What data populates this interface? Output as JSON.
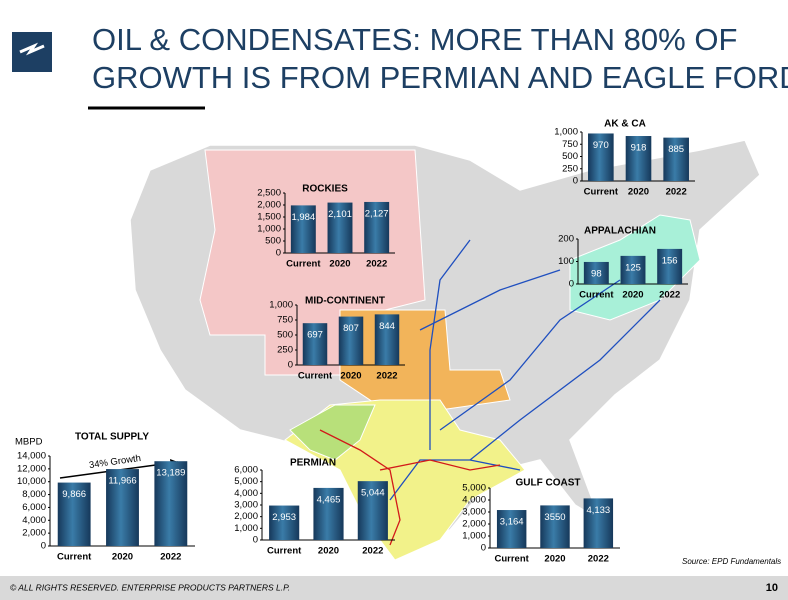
{
  "slide": {
    "title": [
      "OIL & CONDENSATES: MORE THAN 80% OF",
      "GROWTH IS FROM PERMIAN AND EAGLE FORD"
    ],
    "source": "Source:  EPD Fundamentals",
    "footer": "© ALL RIGHTS RESERVED. ENTERPRISE PRODUCTS PARTNERS L.P.",
    "page": 10
  },
  "chart_data": [
    {
      "type": "bar",
      "title": "ROCKIES",
      "categories": [
        "Current",
        "2020",
        "2022"
      ],
      "values": [
        1984,
        2101,
        2127
      ],
      "value_labels": [
        "1,984",
        "2,101",
        "2,127"
      ],
      "color": "url(#barg)",
      "ylim": [
        0,
        2500
      ],
      "yticks": [
        0,
        500,
        {
          "value": 1000,
          "label": "1,000"
        },
        {
          "value": 1500,
          "label": "1,500"
        },
        {
          "value": 2000,
          "label": "2,000"
        },
        {
          "value": 2500,
          "label": "2,500"
        }
      ]
    },
    {
      "type": "bar",
      "title": "MID-CONTINENT",
      "categories": [
        "Current",
        "2020",
        "2022"
      ],
      "values": [
        697,
        807,
        844
      ],
      "color": "url(#barg)",
      "ylim": [
        0,
        1000
      ],
      "yticks": [
        0,
        250,
        500,
        750,
        {
          "value": 1000,
          "label": "1,000"
        }
      ]
    },
    {
      "type": "bar",
      "title": "AK & CA",
      "categories": [
        "Current",
        "2020",
        "2022"
      ],
      "values": [
        970,
        918,
        885
      ],
      "color": "url(#barg)",
      "ylim": [
        0,
        1000
      ],
      "yticks": [
        0,
        250,
        500,
        750,
        {
          "value": 1000,
          "label": "1,000"
        }
      ]
    },
    {
      "type": "bar",
      "title": "APPALACHIAN",
      "categories": [
        "Current",
        "2020",
        "2022"
      ],
      "values": [
        98,
        125,
        156
      ],
      "color": "url(#barg)",
      "ylim": [
        0,
        200
      ],
      "yticks": [
        0,
        100,
        200
      ]
    },
    {
      "type": "bar",
      "title": "TOTAL SUPPLY",
      "y_label": "MBPD",
      "annotation": "34% Growth",
      "categories": [
        "Current",
        "2020",
        "2022"
      ],
      "values": [
        9866,
        11966,
        13189
      ],
      "value_labels": [
        "9,866",
        "11,966",
        "13,189"
      ],
      "color": "url(#barg)",
      "ylim": [
        0,
        14000
      ],
      "yticks": [
        0,
        {
          "value": 2000,
          "label": "2,000"
        },
        {
          "value": 4000,
          "label": "4,000"
        },
        {
          "value": 6000,
          "label": "6,000"
        },
        {
          "value": 8000,
          "label": "8,000"
        },
        {
          "value": 10000,
          "label": "10,000"
        },
        {
          "value": 12000,
          "label": "12,000"
        },
        {
          "value": 14000,
          "label": "14,000"
        }
      ]
    },
    {
      "type": "bar",
      "title": "PERMIAN",
      "categories": [
        "Current",
        "2020",
        "2022"
      ],
      "values": [
        2953,
        4465,
        5044
      ],
      "value_labels": [
        "2,953",
        "4,465",
        "5,044"
      ],
      "color": "url(#barg)",
      "ylim": [
        0,
        6000
      ],
      "yticks": [
        0,
        {
          "value": 1000,
          "label": "1,000"
        },
        {
          "value": 2000,
          "label": "2,000"
        },
        {
          "value": 3000,
          "label": "3,000"
        },
        {
          "value": 4000,
          "label": "4,000"
        },
        {
          "value": 5000,
          "label": "5,000"
        },
        {
          "value": 6000,
          "label": "6,000"
        }
      ]
    },
    {
      "type": "bar",
      "title": "GULF COAST",
      "categories": [
        "Current",
        "2020",
        "2022"
      ],
      "values": [
        3164,
        3550,
        4133
      ],
      "value_labels": [
        "3,164",
        "3550",
        "4,133"
      ],
      "color": "url(#barg)",
      "ylim": [
        0,
        5000
      ],
      "yticks": [
        0,
        {
          "value": 1000,
          "label": "1,000"
        },
        {
          "value": 2000,
          "label": "2,000"
        },
        {
          "value": 3000,
          "label": "3,000"
        },
        {
          "value": 4000,
          "label": "4,000"
        },
        {
          "value": 5000,
          "label": "5,000"
        }
      ]
    }
  ]
}
